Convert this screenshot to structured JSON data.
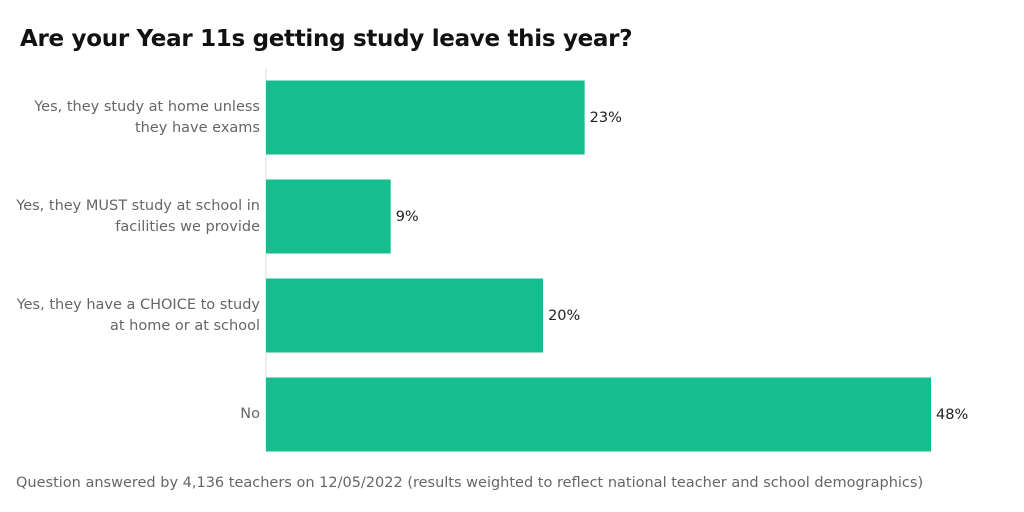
{
  "chart_data": {
    "type": "bar",
    "orientation": "horizontal",
    "title": "Are your Year 11s getting study leave this year?",
    "categories": [
      "Yes, they study at home unless they have exams",
      "Yes, they MUST study at school in facilities we provide",
      "Yes, they have a CHOICE to study at home or at school",
      "No"
    ],
    "values": [
      23,
      9,
      20,
      48
    ],
    "value_labels": [
      "23%",
      "9%",
      "20%",
      "48%"
    ],
    "color": "#14be8f",
    "note": "Question answered by 4,136 teachers on 12/05/2022 (results weighted to reflect national teacher and school demographics)"
  }
}
